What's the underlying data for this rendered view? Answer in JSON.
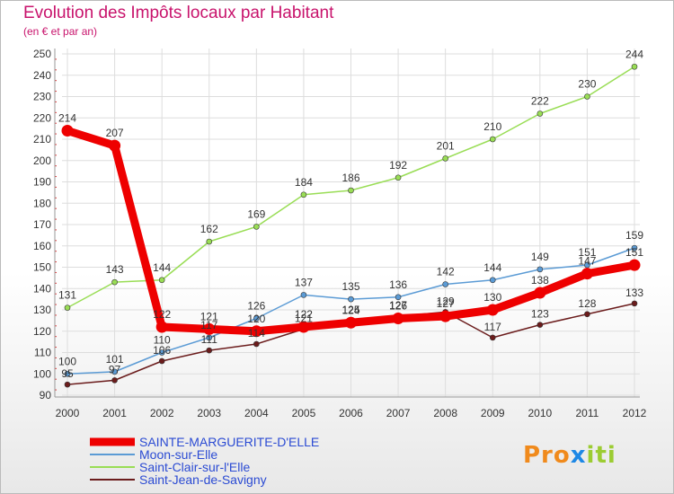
{
  "title": "Evolution des Impôts locaux par Habitant",
  "subtitle": "(en € et par an)",
  "logo": {
    "parts": [
      "Pro",
      "x",
      "iti"
    ]
  },
  "chart_data": {
    "type": "line",
    "x": [
      "2000",
      "2001",
      "2002",
      "2003",
      "2004",
      "2005",
      "2006",
      "2007",
      "2008",
      "2009",
      "2010",
      "2011",
      "2012"
    ],
    "ylim": [
      90,
      250
    ],
    "yticks": [
      90,
      100,
      110,
      120,
      130,
      140,
      150,
      160,
      170,
      180,
      190,
      200,
      210,
      220,
      230,
      240,
      250
    ],
    "series": [
      {
        "name": "SAINTE-MARGUERITE-D'ELLE",
        "color": "#ee0000",
        "width": 9,
        "values": [
          214,
          207,
          122,
          121,
          120,
          122,
          124,
          126,
          127,
          130,
          138,
          147,
          151
        ],
        "labels": [
          "214",
          "207",
          "122",
          "121",
          "120",
          "122",
          "124",
          "126",
          "127",
          "130",
          "138",
          "147",
          "151"
        ]
      },
      {
        "name": "Moon-sur-Elle",
        "color": "#5b9bd5",
        "width": 1.5,
        "values": [
          100,
          101,
          110,
          117,
          126,
          137,
          135,
          136,
          142,
          144,
          149,
          151,
          159
        ],
        "labels": [
          "100",
          "101",
          "110",
          "117",
          "126",
          "137",
          "135",
          "136",
          "142",
          "144",
          "149",
          "151",
          "159"
        ]
      },
      {
        "name": "Saint-Clair-sur-l'Elle",
        "color": "#99dd55",
        "width": 1.5,
        "values": [
          131,
          143,
          144,
          162,
          169,
          184,
          186,
          192,
          201,
          210,
          222,
          230,
          244
        ],
        "labels": [
          "131",
          "143",
          "144",
          "162",
          "169",
          "184",
          "186",
          "192",
          "201",
          "210",
          "222",
          "230",
          "244"
        ]
      },
      {
        "name": "Saint-Jean-de-Savigny",
        "color": "#6b1c1c",
        "width": 1.5,
        "values": [
          95,
          97,
          106,
          111,
          114,
          121,
          125,
          127,
          129,
          117,
          123,
          128,
          133
        ],
        "labels": [
          "95",
          "97",
          "106",
          "111",
          "114",
          "121",
          "125",
          "127",
          "129",
          "117",
          "123",
          "128",
          "133"
        ]
      }
    ]
  }
}
